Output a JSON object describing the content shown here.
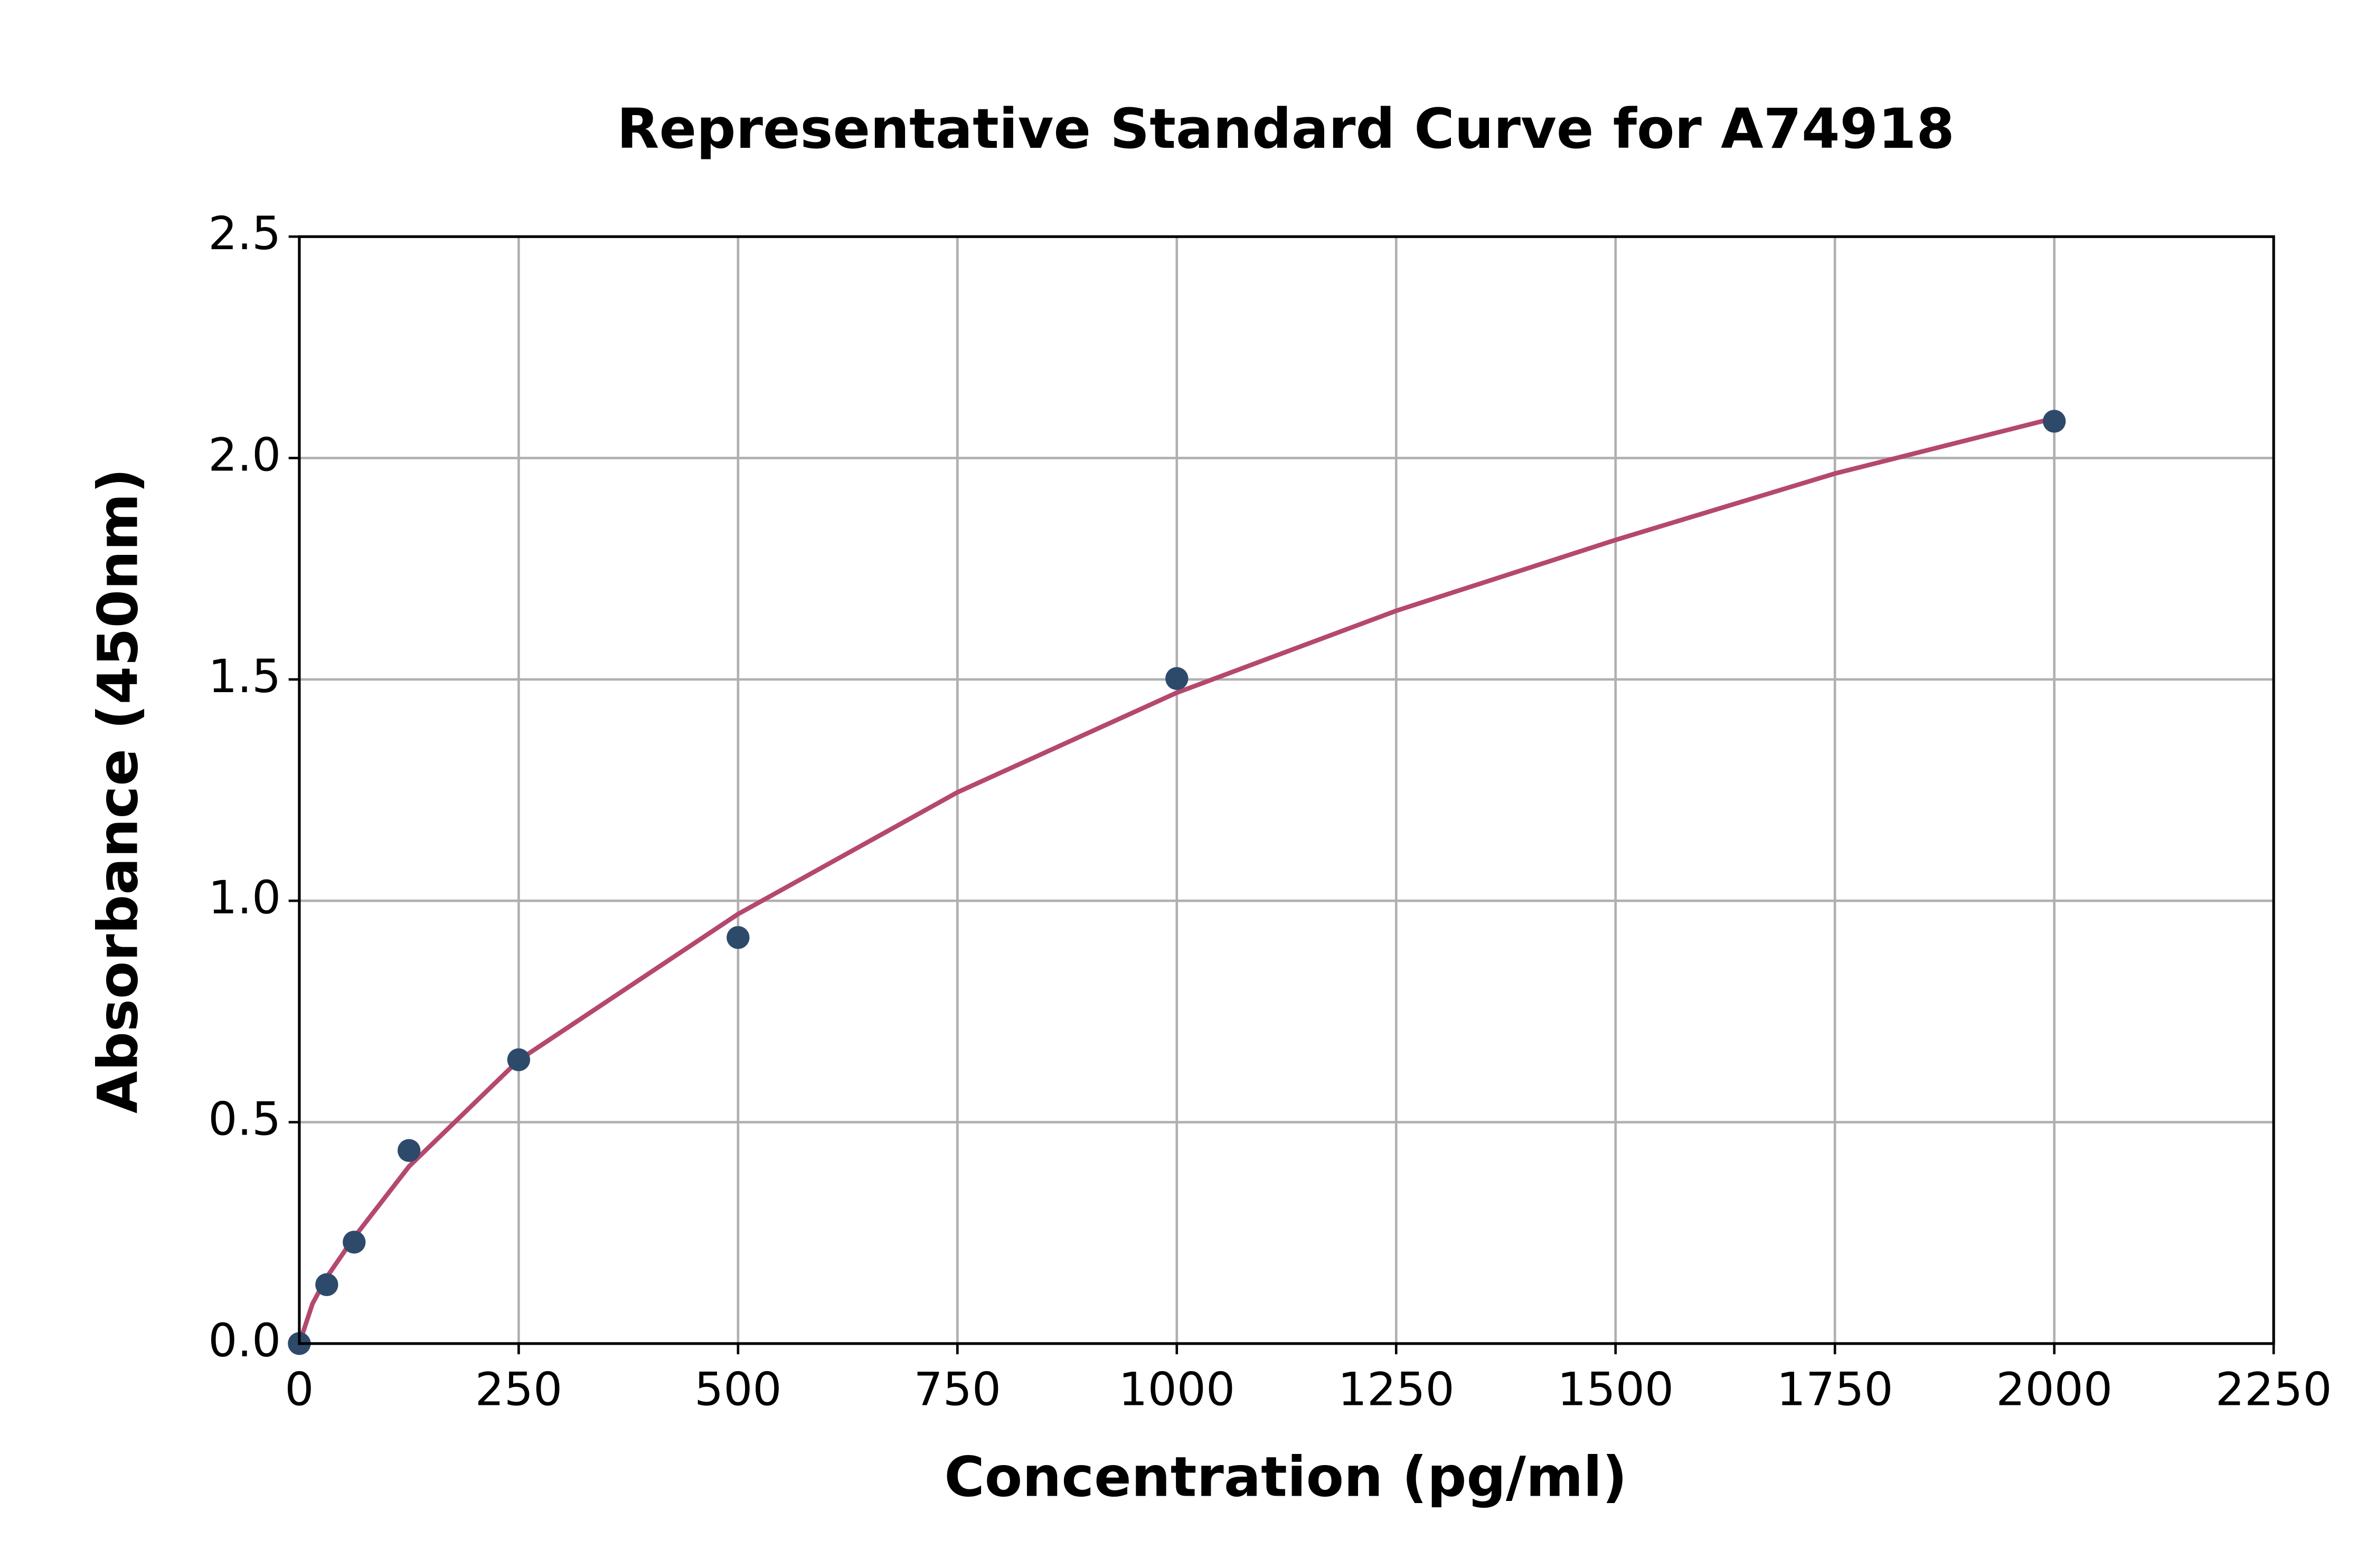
{
  "chart_data": {
    "type": "scatter",
    "title": "Representative Standard Curve for A74918",
    "xlabel": "Concentration (pg/ml)",
    "ylabel": "Absorbance (450nm)",
    "series": [
      {
        "type": "scatter",
        "color": "#2e4a6b",
        "x": [
          0,
          31.25,
          62.5,
          125,
          250,
          500,
          1000,
          2000
        ],
        "values": [
          0.0,
          0.133,
          0.229,
          0.436,
          0.641,
          0.917,
          1.502,
          2.083
        ]
      },
      {
        "type": "line",
        "color": "#b5486e",
        "x": [
          0,
          15,
          31.25,
          62.5,
          125,
          250,
          500,
          750,
          1000,
          1250,
          1500,
          1750,
          2000
        ],
        "values": [
          0,
          0.09,
          0.15,
          0.24,
          0.4,
          0.64,
          0.97,
          1.245,
          1.47,
          1.655,
          1.815,
          1.965,
          2.09
        ]
      }
    ],
    "xlim": [
      0,
      2250
    ],
    "xticks": [
      0,
      250,
      500,
      750,
      1000,
      1250,
      1500,
      1750,
      2000,
      2250
    ],
    "ylim": [
      0,
      2.5
    ],
    "yticks": [
      {
        "value": 0,
        "label": "0.0"
      },
      0.5,
      {
        "value": 1,
        "label": "1.0"
      },
      1.5,
      {
        "value": 2,
        "label": "2.0"
      },
      2.5
    ],
    "grid": true
  }
}
